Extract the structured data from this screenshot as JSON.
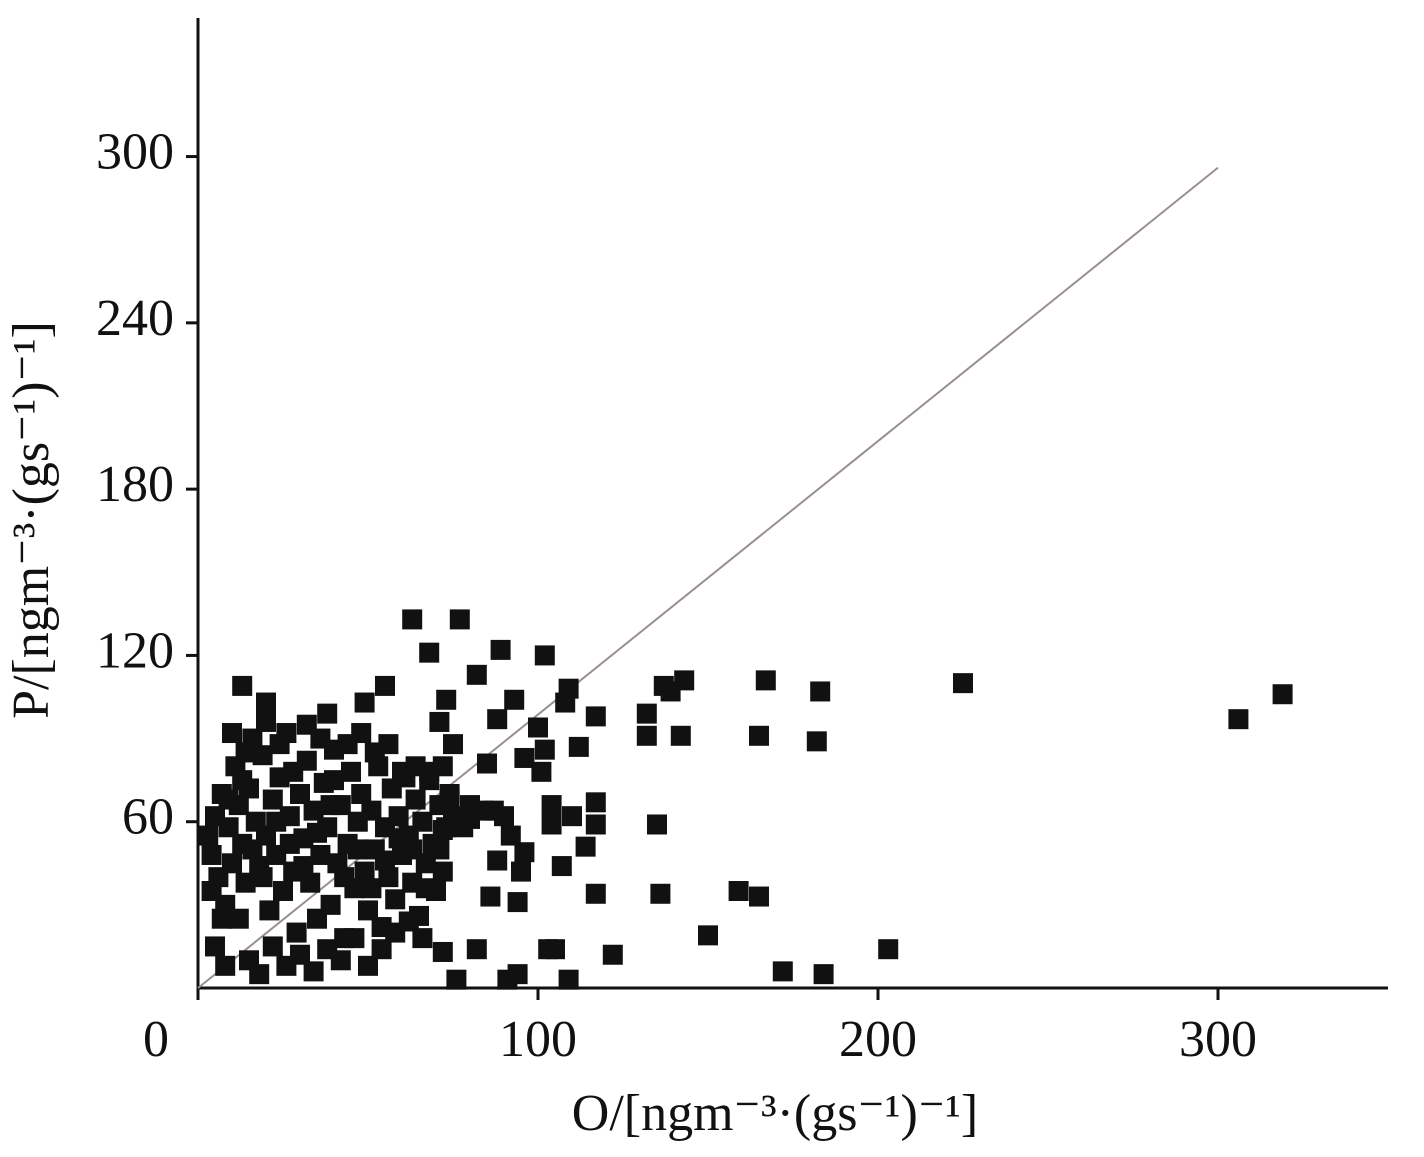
{
  "chart_data": {
    "type": "scatter",
    "xlabel": "O/[ngm⁻³·(gs⁻¹)⁻¹]",
    "ylabel": "P/[ngm⁻³·(gs⁻¹)⁻¹]",
    "xlim": [
      0,
      350
    ],
    "ylim": [
      0,
      350
    ],
    "xticks": [
      0,
      100,
      200,
      300
    ],
    "yticks": [
      60,
      120,
      180,
      240,
      300
    ],
    "color": "#111111",
    "x": [
      63,
      77,
      68,
      89,
      102,
      13,
      20,
      55,
      49,
      38,
      82,
      73,
      93,
      109,
      108,
      71,
      88,
      117,
      137,
      143,
      139,
      132,
      132,
      142,
      167,
      183,
      165,
      182,
      225,
      319,
      306,
      100,
      102,
      112,
      101,
      96,
      85,
      75,
      117,
      104,
      104,
      110,
      117,
      114,
      107,
      96,
      95,
      88,
      135,
      117,
      136,
      159,
      165,
      86,
      94,
      150,
      203,
      122,
      103,
      105,
      82,
      172,
      184,
      109,
      94,
      91,
      76,
      72,
      87,
      80,
      72,
      74,
      3,
      4,
      5,
      6,
      7,
      8,
      9,
      10,
      11,
      12,
      13,
      14,
      15,
      16,
      17,
      18,
      19,
      20,
      21,
      22,
      23,
      24,
      25,
      26,
      27,
      28,
      29,
      30,
      31,
      32,
      33,
      34,
      35,
      36,
      37,
      38,
      39,
      40,
      41,
      42,
      43,
      44,
      45,
      46,
      47,
      48,
      49,
      50,
      51,
      52,
      53,
      54,
      55,
      56,
      57,
      58,
      59,
      60,
      61,
      62,
      63,
      64,
      65,
      66,
      67,
      68,
      69,
      70,
      71,
      72,
      73,
      74,
      5,
      8,
      12,
      15,
      18,
      22,
      26,
      30,
      34,
      38,
      42,
      46,
      50,
      54,
      58,
      62,
      66,
      10,
      14,
      20,
      24,
      28,
      32,
      36,
      40,
      44,
      48,
      52,
      56,
      60,
      64,
      68,
      72,
      4,
      7,
      9,
      13,
      16,
      19,
      23,
      27,
      31,
      35,
      39,
      43,
      47,
      51,
      55,
      59,
      63,
      67,
      71,
      75,
      78,
      80,
      84,
      90,
      92
    ],
    "y": [
      133,
      133,
      121,
      122,
      120,
      109,
      103,
      109,
      103,
      99,
      113,
      104,
      104,
      108,
      103,
      96,
      97,
      98,
      109,
      111,
      107,
      99,
      91,
      91,
      111,
      107,
      91,
      89,
      110,
      106,
      97,
      94,
      86,
      87,
      78,
      83,
      81,
      88,
      67,
      66,
      59,
      62,
      59,
      51,
      44,
      49,
      42,
      46,
      59,
      34,
      34,
      35,
      33,
      33,
      31,
      19,
      14,
      12,
      14,
      14,
      14,
      6,
      5,
      3,
      5,
      3,
      3,
      13,
      64,
      61,
      57,
      68,
      55,
      48,
      62,
      40,
      70,
      30,
      58,
      45,
      80,
      66,
      52,
      38,
      72,
      90,
      60,
      44,
      84,
      55,
      28,
      68,
      48,
      76,
      35,
      92,
      62,
      42,
      20,
      70,
      54,
      82,
      38,
      64,
      25,
      48,
      74,
      58,
      30,
      86,
      45,
      66,
      18,
      52,
      78,
      36,
      60,
      70,
      42,
      28,
      64,
      50,
      80,
      22,
      58,
      40,
      72,
      32,
      62,
      48,
      76,
      55,
      38,
      68,
      26,
      60,
      45,
      78,
      52,
      35,
      66,
      42,
      58,
      70,
      15,
      8,
      25,
      10,
      5,
      15,
      8,
      12,
      6,
      14,
      10,
      18,
      8,
      14,
      20,
      24,
      18,
      92,
      85,
      96,
      88,
      78,
      95,
      90,
      75,
      88,
      92,
      85,
      88,
      78,
      80,
      75,
      80,
      35,
      25,
      68,
      75,
      50,
      40,
      60,
      52,
      44,
      56,
      66,
      40,
      50,
      36,
      46,
      54,
      50,
      36,
      50,
      62,
      58,
      66,
      64,
      62,
      55
    ],
    "reference_line": {
      "x": [
        0,
        300
      ],
      "y": [
        0,
        296
      ],
      "color": "#9a8f8f"
    }
  }
}
